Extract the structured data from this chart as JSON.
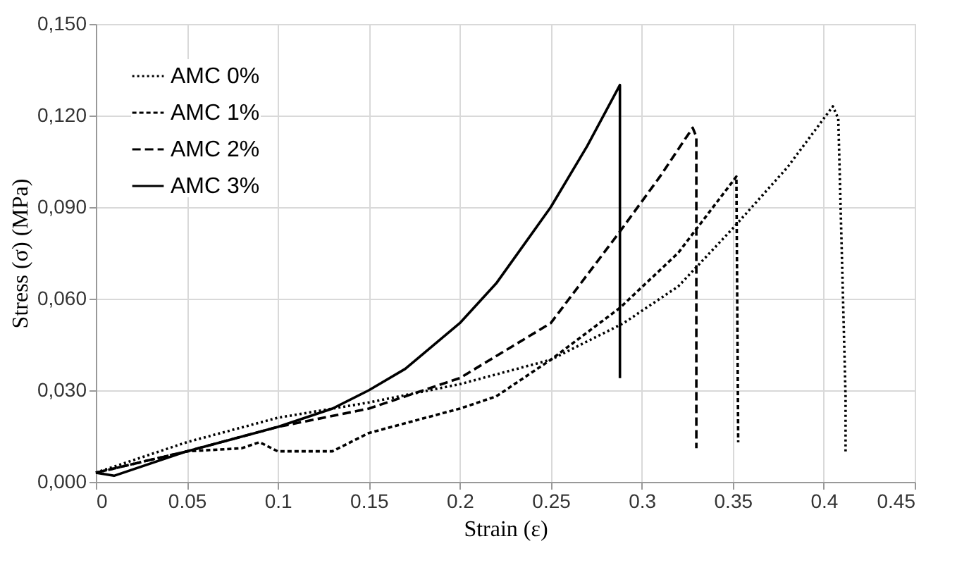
{
  "chart_data": {
    "type": "line",
    "xlabel": "Strain (ε)",
    "ylabel": "Stress (σ) (MPa)",
    "xlim": [
      0,
      0.45
    ],
    "xticks": [
      0,
      0.05,
      0.1,
      0.15,
      0.2,
      0.25,
      0.3,
      0.35,
      0.4,
      0.45
    ],
    "ylim": [
      0,
      0.15
    ],
    "yticks": [
      {
        "value": 0,
        "label": "0,000"
      },
      {
        "value": 0.03,
        "label": "0,030"
      },
      {
        "value": 0.06,
        "label": "0,060"
      },
      {
        "value": 0.09,
        "label": "0,090"
      },
      {
        "value": 0.12,
        "label": "0,120"
      },
      {
        "value": 0.15,
        "label": "0,150"
      }
    ],
    "grid": true,
    "legend": "top left",
    "marker": "none",
    "series": [
      {
        "name": "AMC 0%",
        "color": "#000000",
        "line_style": "dotted",
        "x": [
          0,
          0.02,
          0.05,
          0.1,
          0.15,
          0.2,
          0.25,
          0.29,
          0.32,
          0.35,
          0.38,
          0.405,
          0.408,
          0.412,
          0.412
        ],
        "values": [
          0.003,
          0.007,
          0.013,
          0.021,
          0.026,
          0.032,
          0.04,
          0.052,
          0.064,
          0.083,
          0.103,
          0.123,
          0.119,
          0.028,
          0.01
        ]
      },
      {
        "name": "AMC 1%",
        "color": "#000000",
        "line_style": "dashed",
        "x": [
          0,
          0.05,
          0.08,
          0.09,
          0.1,
          0.13,
          0.15,
          0.2,
          0.22,
          0.25,
          0.288,
          0.32,
          0.352,
          0.353
        ],
        "values": [
          0.003,
          0.01,
          0.011,
          0.013,
          0.01,
          0.01,
          0.016,
          0.024,
          0.028,
          0.04,
          0.057,
          0.075,
          0.1,
          0.013
        ]
      },
      {
        "name": "AMC 2%",
        "color": "#000000",
        "line_style": "dashed",
        "x": [
          0,
          0.05,
          0.1,
          0.15,
          0.2,
          0.25,
          0.288,
          0.31,
          0.328,
          0.33,
          0.33
        ],
        "values": [
          0.003,
          0.01,
          0.018,
          0.024,
          0.034,
          0.052,
          0.082,
          0.1,
          0.116,
          0.113,
          0.011
        ]
      },
      {
        "name": "AMC 3%",
        "color": "#000000",
        "line_style": "solid",
        "x": [
          0,
          0.01,
          0.05,
          0.1,
          0.13,
          0.15,
          0.17,
          0.2,
          0.22,
          0.25,
          0.27,
          0.288,
          0.288
        ],
        "values": [
          0.003,
          0.002,
          0.01,
          0.018,
          0.024,
          0.03,
          0.037,
          0.052,
          0.065,
          0.09,
          0.11,
          0.13,
          0.034
        ]
      }
    ]
  }
}
